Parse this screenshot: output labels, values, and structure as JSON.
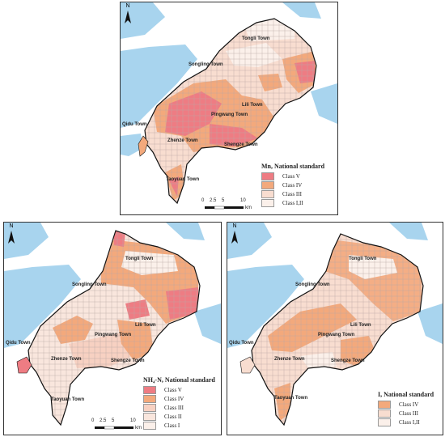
{
  "colors": {
    "water": "#a8d4ee",
    "land_outside": "#ffffff",
    "class_v": "#ee7c83",
    "class_iv": "#f3a97c",
    "class_iii": "#f7d1c2",
    "class_iii_alt": "#f8ddd0",
    "class_ii": "#f9e6dd",
    "class_i": "#fbf0ea",
    "grid": "#b9a8a4",
    "boundary": "#111111"
  },
  "towns": {
    "tongli": "Tongli Town",
    "songling": "Songling Town",
    "lili": "Lili Town",
    "qidu": "Qidu Town",
    "pingwang": "Pingwang Town",
    "zhenze": "Zhenze Town",
    "shengze": "Shengze Town",
    "taoyuan": "Taoyuan Town"
  },
  "north_label": "N",
  "scale": {
    "ticks": [
      "0",
      "2.5",
      "5",
      "10"
    ],
    "unit": "km"
  },
  "maps": [
    {
      "id": "mn",
      "legend_title": "Mn, National standard",
      "classes": [
        {
          "label": "Class V",
          "color": "#ee7c83"
        },
        {
          "label": "Class IV",
          "color": "#f3a97c"
        },
        {
          "label": "Class III",
          "color": "#f8ddd0"
        },
        {
          "label": "Class I,II",
          "color": "#fbf0ea"
        }
      ]
    },
    {
      "id": "nh4",
      "legend_title": "NH₄-N, National standard",
      "classes": [
        {
          "label": "Class V",
          "color": "#ee7c83"
        },
        {
          "label": "Class IV",
          "color": "#f3a97c"
        },
        {
          "label": "Class III",
          "color": "#f7d1c2"
        },
        {
          "label": "Class II",
          "color": "#f9e6dd"
        },
        {
          "label": "Class I",
          "color": "#fbf0ea"
        }
      ]
    },
    {
      "id": "i",
      "legend_title": "I, National standard",
      "classes": [
        {
          "label": "Class IV",
          "color": "#f3a97c"
        },
        {
          "label": "Class III",
          "color": "#f8ddd0"
        },
        {
          "label": "Class I,II",
          "color": "#fbf0ea"
        }
      ]
    }
  ]
}
